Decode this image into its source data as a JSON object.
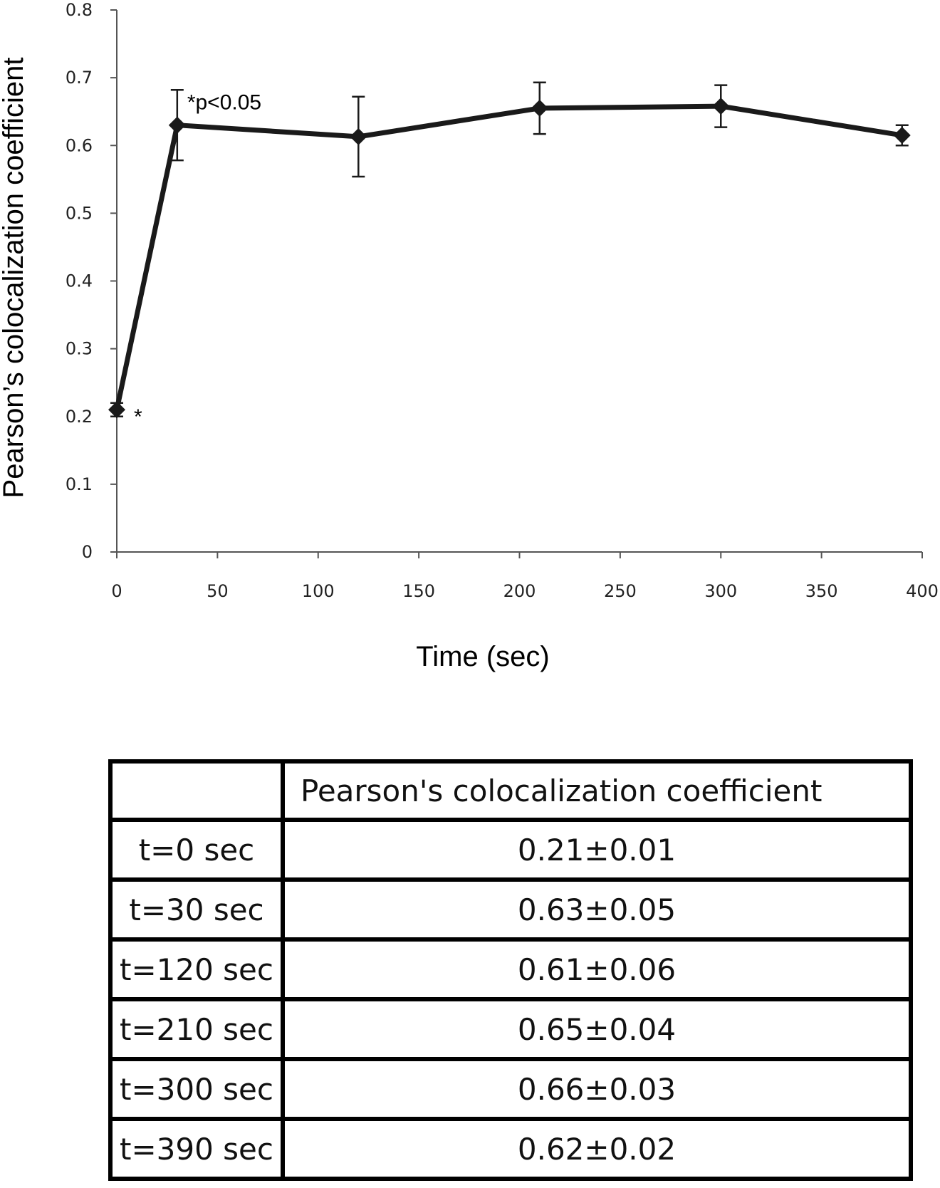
{
  "chart_data": {
    "type": "line",
    "title": "",
    "xlabel": "Time (sec)",
    "ylabel": "Pearson’s colocalization coefficient",
    "xlim": [
      0,
      400
    ],
    "ylim": [
      0,
      0.8
    ],
    "x_ticks": [
      "0",
      "50",
      "100",
      "150",
      "200",
      "250",
      "300",
      "350",
      "400"
    ],
    "y_ticks": [
      "0",
      "0.1",
      "0.2",
      "0.3",
      "0.4",
      "0.5",
      "0.6",
      "0.7",
      "0.8"
    ],
    "grid": false,
    "legend": "none",
    "series": [
      {
        "x": [
          0,
          30,
          120,
          210,
          300,
          390
        ],
        "y": [
          0.21,
          0.63,
          0.613,
          0.655,
          0.658,
          0.615
        ],
        "error": [
          0.01,
          0.052,
          0.059,
          0.038,
          0.031,
          0.015
        ],
        "color": "#1a1a1a"
      }
    ],
    "annotations": [
      {
        "text": "*",
        "x": 0,
        "y": 0.21
      },
      {
        "text": "*p<0.05",
        "x": 30,
        "y": 0.63
      }
    ]
  },
  "table": {
    "header": [
      "",
      "Pearson's colocalization coefficient"
    ],
    "rows": [
      [
        "t=0 sec",
        "0.21±0.01"
      ],
      [
        "t=30 sec",
        "0.63±0.05"
      ],
      [
        "t=120 sec",
        "0.61±0.06"
      ],
      [
        "t=210 sec",
        "0.65±0.04"
      ],
      [
        "t=300 sec",
        "0.66±0.03"
      ],
      [
        "t=390 sec",
        "0.62±0.02"
      ]
    ]
  }
}
